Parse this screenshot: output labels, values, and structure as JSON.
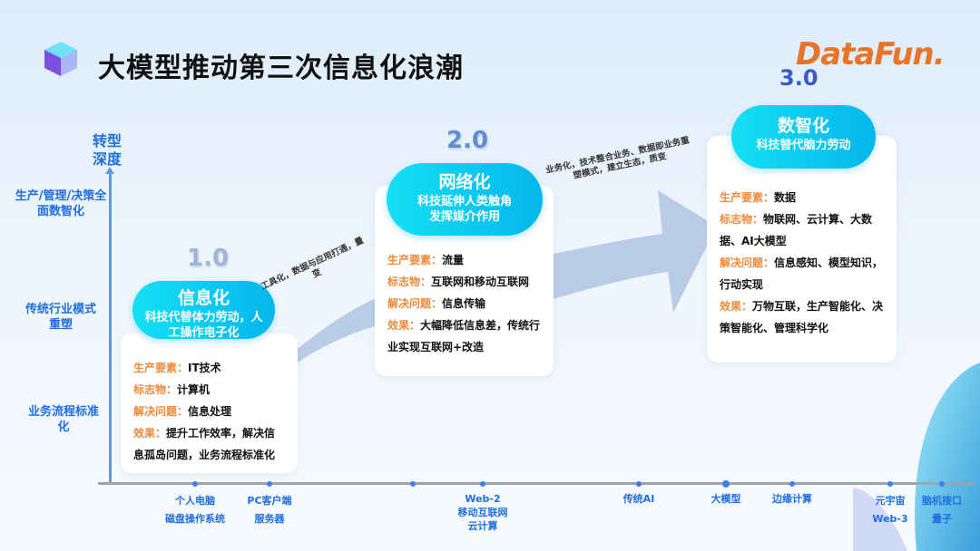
{
  "header": {
    "title": "大模型推动第三次信息化浪潮",
    "logo_text": "DataFun.",
    "logo_version": "3.0"
  },
  "yaxis": {
    "title": "转型深度",
    "levels": [
      {
        "label": "生产/管理/决策全面数智化"
      },
      {
        "label": "传统行业模式重塑"
      },
      {
        "label": "业务流程标准化"
      }
    ]
  },
  "stages": [
    {
      "version": "1.0",
      "name": "信息化",
      "subtitle": "科技代替体力劳动，人工操作电子化",
      "rows": [
        {
          "k": "生产要素：",
          "v": "IT技术"
        },
        {
          "k": "标志物：",
          "v": "计算机"
        },
        {
          "k": "解决问题：",
          "v": "信息处理"
        },
        {
          "k": "效果：",
          "v": "提升工作效率，解决信息孤岛问题，业务流程标准化"
        }
      ]
    },
    {
      "version": "2.0",
      "name": "网络化",
      "subtitle": "科技延伸人类触角发挥媒介作用",
      "rows": [
        {
          "k": "生产要素：",
          "v": "流量"
        },
        {
          "k": "标志物：",
          "v": "互联网和移动互联网"
        },
        {
          "k": "解决问题：",
          "v": "信息传输"
        },
        {
          "k": "效果：",
          "v": "大幅降低信息差，传统行业实现互联网+改造"
        }
      ]
    },
    {
      "version": "3.0",
      "name": "数智化",
      "subtitle": "科技替代脑力劳动",
      "rows": [
        {
          "k": "生产要素：",
          "v": "数据"
        },
        {
          "k": "标志物：",
          "v": "物联网、云计算、大数据、AI大模型"
        },
        {
          "k": "解决问题：",
          "v": "信息感知、模型知识，行动实现"
        },
        {
          "k": "效果：",
          "v": "万物互联，生产智能化、决策智能化、管理科学化"
        }
      ]
    }
  ],
  "transitions": [
    {
      "text": "工具化，数据与应用打通，量变"
    },
    {
      "text": "业务化，技术整合业务、数据即业务重塑模式，建立生态，质变"
    }
  ],
  "timeline": [
    {
      "label": "个人电脑\n磁盘操作系统"
    },
    {
      "label": "PC客户端\n服务器"
    },
    {
      "label": ""
    },
    {
      "label": "Web-2\n移动互联网\n云计算"
    },
    {
      "label": "传统AI"
    },
    {
      "label": "大模型"
    },
    {
      "label": "边缘计算"
    },
    {
      "label": "元宇宙\nWeb-3"
    },
    {
      "label": "脑机接口\n量子"
    }
  ],
  "colors": {
    "accent": "#1f6fe0",
    "key": "#f08a3c",
    "pill_start": "#14e0f4",
    "pill_end": "#05b6ec",
    "arrow": "#b9cce6"
  }
}
